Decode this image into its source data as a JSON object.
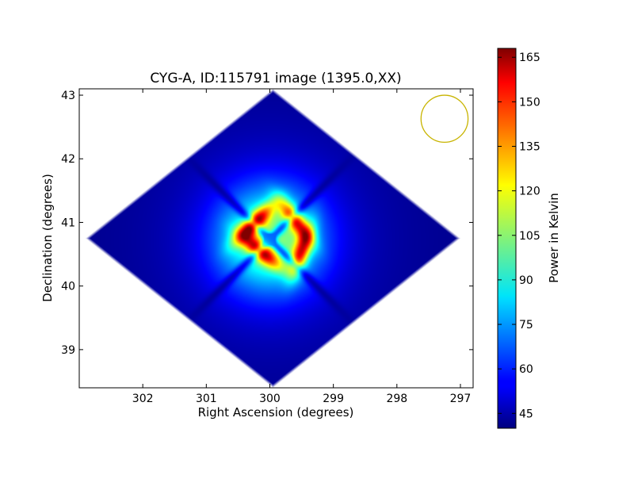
{
  "chart_data": {
    "type": "heatmap",
    "title": "CYG-A, ID:115791 image (1395.0,XX)",
    "xlabel": "Right Ascension (degrees)",
    "ylabel": "Declination (degrees)",
    "xlim": [
      303.0,
      296.8
    ],
    "ylim": [
      38.4,
      43.1
    ],
    "x_ticks": [
      {
        "value": 302,
        "label": "302"
      },
      {
        "value": 301,
        "label": "301"
      },
      {
        "value": 300,
        "label": "300"
      },
      {
        "value": 299,
        "label": "299"
      },
      {
        "value": 298,
        "label": "298"
      },
      {
        "value": 297,
        "label": "297"
      }
    ],
    "y_ticks": [
      {
        "value": 39,
        "label": "39"
      },
      {
        "value": 40,
        "label": "40"
      },
      {
        "value": 41,
        "label": "41"
      },
      {
        "value": 42,
        "label": "42"
      },
      {
        "value": 43,
        "label": "43"
      }
    ],
    "colorbar": {
      "label": "Power in Kelvin",
      "colormap": "jet",
      "range": [
        40,
        168
      ],
      "ticks": [
        {
          "value": 45,
          "label": "45"
        },
        {
          "value": 60,
          "label": "60"
        },
        {
          "value": 75,
          "label": "75"
        },
        {
          "value": 90,
          "label": "90"
        },
        {
          "value": 105,
          "label": "105"
        },
        {
          "value": 120,
          "label": "120"
        },
        {
          "value": 135,
          "label": "135"
        },
        {
          "value": 150,
          "label": "150"
        },
        {
          "value": 165,
          "label": "165"
        }
      ]
    },
    "footprint": {
      "shape": "diamond",
      "center_ra": 299.95,
      "center_dec": 40.75,
      "half_width_ra": 2.95,
      "half_height_dec": 2.35,
      "background_value": 42
    },
    "source": {
      "center_ra": 300.0,
      "center_dec": 40.73,
      "peak_value": 168,
      "lobes": [
        {
          "ra": 300.25,
          "dec": 40.98,
          "value": 168
        },
        {
          "ra": 299.6,
          "dec": 41.03,
          "value": 160
        },
        {
          "ra": 300.15,
          "dec": 40.55,
          "value": 158
        },
        {
          "ra": 299.5,
          "dec": 40.55,
          "value": 162
        }
      ]
    },
    "beam": {
      "center_ra": 297.25,
      "center_dec": 42.63,
      "radius_ra_deg": 0.37,
      "color": "#c8b400"
    },
    "colors": {
      "axes_edge": "#000000",
      "background": "#ffffff"
    }
  }
}
